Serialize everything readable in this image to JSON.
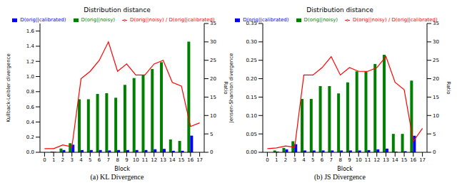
{
  "chart_data": [
    {
      "type": "bar",
      "title": "Distribution distance",
      "caption": "(a) KL Divergence",
      "x_label": "Block",
      "y_label": "Kullback-Leibler divergence",
      "y2_label": "Ratio",
      "categories": [
        "0",
        "1",
        "2",
        "3",
        "4",
        "5",
        "6",
        "7",
        "8",
        "9",
        "10",
        "11",
        "12",
        "13",
        "14",
        "15",
        "16",
        "17"
      ],
      "series": [
        {
          "name": "D(orig||noisy)",
          "type": "bar",
          "color": "#008000",
          "values": [
            0,
            0.01,
            0.05,
            0.12,
            0.7,
            0.7,
            0.77,
            0.78,
            0.72,
            0.89,
            0.98,
            1.02,
            1.1,
            1.19,
            0.17,
            0.15,
            1.46,
            0
          ]
        },
        {
          "name": "D(orig||calibrated)",
          "type": "bar",
          "color": "#0000ff",
          "values": [
            0,
            0.005,
            0.03,
            0.1,
            0.03,
            0.03,
            0.03,
            0.025,
            0.03,
            0.03,
            0.03,
            0.03,
            0.04,
            0.045,
            0.02,
            0.02,
            0.22,
            0
          ]
        },
        {
          "name": "D(orig||noisy) / D(orig||calibrated)",
          "type": "line",
          "axis": "y2",
          "color": "#ff0000",
          "marker": "none",
          "values": [
            1,
            1,
            2,
            1.5,
            20,
            22,
            25,
            30,
            22,
            24,
            21,
            21,
            24,
            25,
            19,
            18,
            7,
            8
          ]
        }
      ],
      "ylim": [
        0,
        1.7
      ],
      "yticks": [
        {
          "value": 0,
          "label": "0.0"
        },
        0.2,
        0.4,
        0.6,
        0.8,
        {
          "value": 1,
          "label": "1.0"
        },
        1.2,
        1.4,
        1.6
      ],
      "y2lim": [
        0,
        35
      ],
      "y2ticks": [
        0,
        5,
        10,
        15,
        20,
        25,
        30,
        35
      ],
      "grid": false,
      "legend": "top"
    },
    {
      "type": "bar",
      "title": "Distribution distance",
      "caption": "(b) JS Divergence",
      "x_label": "Block",
      "y_label": "Jensen-Shannon divergence",
      "y2_label": "Ratio",
      "categories": [
        "0",
        "1",
        "2",
        "3",
        "4",
        "5",
        "6",
        "7",
        "8",
        "9",
        "10",
        "11",
        "12",
        "13",
        "14",
        "15",
        "16",
        "17"
      ],
      "series": [
        {
          "name": "D(orig||noisy)",
          "type": "bar",
          "color": "#008000",
          "values": [
            0,
            0.005,
            0.012,
            0.03,
            0.145,
            0.145,
            0.18,
            0.18,
            0.16,
            0.19,
            0.22,
            0.22,
            0.24,
            0.265,
            0.05,
            0.05,
            0.195,
            0
          ]
        },
        {
          "name": "D(orig||calibrated)",
          "type": "bar",
          "color": "#0000ff",
          "values": [
            0,
            0.002,
            0.008,
            0.022,
            0.005,
            0.005,
            0.005,
            0.005,
            0.005,
            0.005,
            0.005,
            0.006,
            0.008,
            0.01,
            0.002,
            0.003,
            0.045,
            0
          ]
        },
        {
          "name": "D(orig||noisy) / D(orig||calibrated)",
          "type": "line",
          "axis": "y2",
          "color": "#ff0000",
          "marker": "none",
          "values": [
            1,
            1.2,
            1.7,
            1.4,
            21,
            21,
            23,
            26,
            21,
            23,
            22,
            22,
            23,
            26,
            19,
            17,
            3,
            6.5
          ]
        }
      ],
      "ylim": [
        0,
        0.35
      ],
      "yticks": [
        {
          "value": 0,
          "label": "0.00"
        },
        0.05,
        {
          "value": 0.1,
          "label": "0.10"
        },
        0.15,
        {
          "value": 0.2,
          "label": "0.20"
        },
        0.25,
        {
          "value": 0.3,
          "label": "0.30"
        },
        0.35
      ],
      "y2lim": [
        0,
        35
      ],
      "y2ticks": [
        0,
        5,
        10,
        15,
        20,
        25,
        30,
        35
      ],
      "grid": false,
      "legend": "top"
    }
  ]
}
